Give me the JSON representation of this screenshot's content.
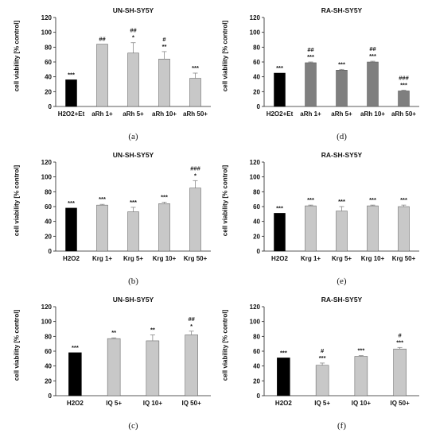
{
  "colors": {
    "control": "#000000",
    "treated_light": "#c8c8c8",
    "treated_dark": "#7f7f7f",
    "error": "#888888"
  },
  "chart_data": [
    {
      "panel": "(a)",
      "type": "bar",
      "title": "UN-SH-SY5Y",
      "ylabel": "cell viability [% control]",
      "ylim": [
        0,
        120
      ],
      "yticks": [
        0,
        20,
        40,
        60,
        80,
        100,
        120
      ],
      "categories": [
        "H2O2+Et",
        "aRh 1+",
        "aRh 5+",
        "aRh 10+",
        "aRh 50+"
      ],
      "values": [
        36,
        84,
        72,
        64,
        38
      ],
      "errors": [
        0,
        0,
        14,
        10,
        7
      ],
      "annotations": [
        [
          "***"
        ],
        [
          "##"
        ],
        [
          "##",
          "*"
        ],
        [
          "#",
          "**"
        ],
        [
          "***"
        ]
      ],
      "bar_styles": [
        "control",
        "light",
        "light",
        "light",
        "light"
      ]
    },
    {
      "panel": "(d)",
      "type": "bar",
      "title": "RA-SH-SY5Y",
      "ylabel": "cell viability [% control]",
      "ylim": [
        0,
        120
      ],
      "yticks": [
        0,
        20,
        40,
        60,
        80,
        100,
        120
      ],
      "categories": [
        "H2O2+Et",
        "aRh 1+",
        "aRh 5+",
        "aRh 10+",
        "aRh 50+"
      ],
      "values": [
        45,
        59,
        49,
        60,
        21
      ],
      "errors": [
        0,
        1,
        1,
        1,
        1
      ],
      "annotations": [
        [
          "***"
        ],
        [
          "##",
          "***"
        ],
        [
          "***"
        ],
        [
          "##",
          "***"
        ],
        [
          "###",
          "***"
        ]
      ],
      "bar_styles": [
        "control",
        "dark",
        "dark",
        "dark",
        "dark"
      ]
    },
    {
      "panel": "(b)",
      "type": "bar",
      "title": "UN-SH-SY5Y",
      "ylabel": "cell viability [% control]",
      "ylim": [
        0,
        120
      ],
      "yticks": [
        0,
        20,
        40,
        60,
        80,
        100,
        120
      ],
      "categories": [
        "H2O2",
        "Krg 1+",
        "Krg 5+",
        "Krg 10+",
        "Krg 50+"
      ],
      "values": [
        58,
        62,
        53,
        64,
        85
      ],
      "errors": [
        0,
        1,
        6,
        2,
        10
      ],
      "annotations": [
        [
          "***"
        ],
        [
          "***"
        ],
        [
          "***"
        ],
        [
          "***"
        ],
        [
          "###",
          "*"
        ]
      ],
      "bar_styles": [
        "control",
        "light",
        "light",
        "light",
        "light"
      ]
    },
    {
      "panel": "(e)",
      "type": "bar",
      "title": "RA-SH-SY5Y",
      "ylabel": "cell viability [% control]",
      "ylim": [
        0,
        120
      ],
      "yticks": [
        0,
        20,
        40,
        60,
        80,
        100,
        120
      ],
      "categories": [
        "H2O2",
        "Krg 1+",
        "Krg 5+",
        "Krg 10+",
        "Krg 50+"
      ],
      "values": [
        51,
        61,
        54,
        61,
        60
      ],
      "errors": [
        0,
        1,
        6,
        1,
        2
      ],
      "annotations": [
        [
          "***"
        ],
        [
          "***"
        ],
        [
          "***"
        ],
        [
          "***"
        ],
        [
          "***"
        ]
      ],
      "bar_styles": [
        "control",
        "light",
        "light",
        "light",
        "light"
      ]
    },
    {
      "panel": "(c)",
      "type": "bar",
      "title": "UN-SH-SY5Y",
      "ylabel": "cell viability [% control]",
      "ylim": [
        0,
        120
      ],
      "yticks": [
        0,
        20,
        40,
        60,
        80,
        100,
        120
      ],
      "categories": [
        "H2O2",
        "IQ 5+",
        "IQ 10+",
        "IQ 50+"
      ],
      "values": [
        58,
        77,
        74,
        82
      ],
      "errors": [
        0,
        1,
        8,
        5
      ],
      "annotations": [
        [
          "***"
        ],
        [
          "**"
        ],
        [
          "**"
        ],
        [
          "##",
          "*"
        ]
      ],
      "bar_styles": [
        "control",
        "light",
        "light",
        "light"
      ]
    },
    {
      "panel": "(f)",
      "type": "bar",
      "title": "RA-SH-SY5Y",
      "ylabel": "cell viability [% control]",
      "ylim": [
        0,
        120
      ],
      "yticks": [
        0,
        20,
        40,
        60,
        80,
        100,
        120
      ],
      "categories": [
        "H2O2",
        "IQ 5+",
        "IQ 10+",
        "IQ 50+"
      ],
      "values": [
        51,
        41,
        53,
        63
      ],
      "errors": [
        0,
        3,
        1,
        2
      ],
      "annotations": [
        [
          "***"
        ],
        [
          "#",
          "***"
        ],
        [
          "***"
        ],
        [
          "#",
          "***"
        ]
      ],
      "bar_styles": [
        "control",
        "light",
        "light",
        "light"
      ]
    }
  ]
}
